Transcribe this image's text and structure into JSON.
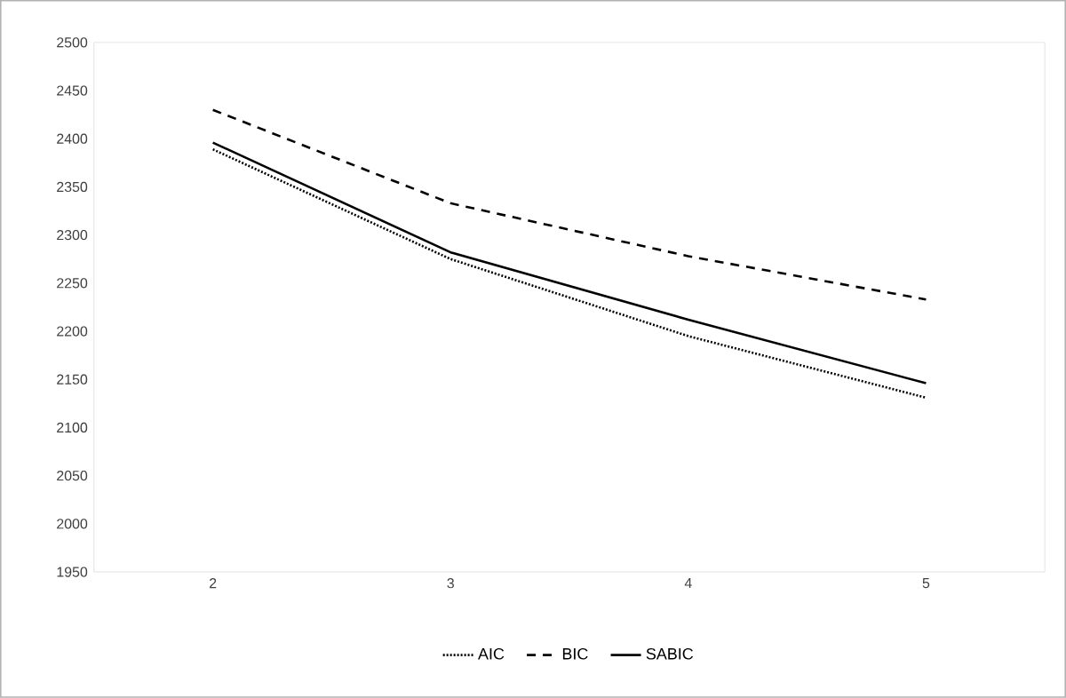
{
  "chart_data": {
    "type": "line",
    "categories": [
      "2",
      "3",
      "4",
      "5"
    ],
    "series": [
      {
        "name": "AIC",
        "color": "#000000",
        "line_style": "dotted",
        "values": [
          2389,
          2275,
          2195,
          2131
        ]
      },
      {
        "name": "BIC",
        "color": "#000000",
        "line_style": "dashed",
        "values": [
          2430,
          2333,
          2278,
          2233
        ]
      },
      {
        "name": "SABIC",
        "color": "#000000",
        "line_style": "solid",
        "values": [
          2396,
          2282,
          2212,
          2146
        ]
      }
    ],
    "ylim": [
      1950,
      2500
    ],
    "yticks": [
      1950,
      2000,
      2050,
      2100,
      2150,
      2200,
      2250,
      2300,
      2350,
      2400,
      2450,
      2500
    ],
    "grid": false,
    "legend": "bottom",
    "marker": "none"
  }
}
